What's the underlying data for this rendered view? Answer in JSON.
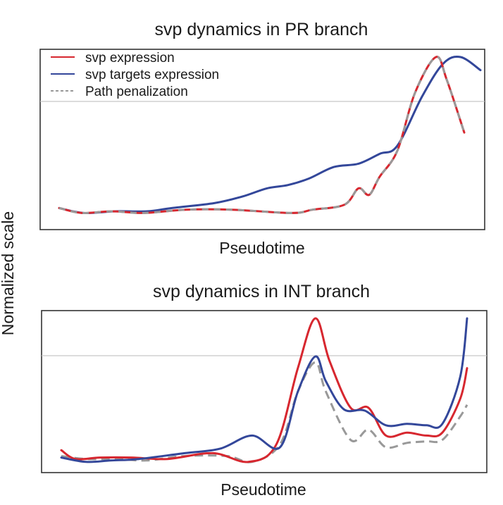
{
  "colors": {
    "svp_expression": "#d7272f",
    "svp_targets_expression": "#33479a",
    "path_penalization": "#999999",
    "frame": "#333333",
    "gridline": "#c8c8c8"
  },
  "shared": {
    "ylabel": "Normalized scale"
  },
  "chart_data": [
    {
      "type": "line",
      "title": "svp dynamics in PR branch",
      "xlabel": "Pseudotime",
      "ylabel": "Normalized scale",
      "xlim": [
        0,
        1
      ],
      "ylim": [
        0,
        1
      ],
      "grid": "single horizontal reference line",
      "legend": {
        "placement": "top-left",
        "entries": [
          "svp expression",
          "svp targets expression",
          "Path penalization"
        ]
      },
      "series": [
        {
          "name": "svp expression",
          "style": "solid",
          "x": [
            0.0,
            0.056,
            0.13,
            0.209,
            0.313,
            0.426,
            0.574,
            0.626,
            0.704,
            0.739,
            0.765,
            0.791,
            0.835,
            0.878,
            0.93,
            0.957,
            1.0
          ],
          "y": [
            0.08,
            0.05,
            0.06,
            0.05,
            0.07,
            0.07,
            0.05,
            0.07,
            0.1,
            0.2,
            0.16,
            0.27,
            0.43,
            0.78,
            1.0,
            0.86,
            0.54
          ]
        },
        {
          "name": "svp targets expression",
          "style": "solid",
          "x": [
            0.0,
            0.061,
            0.139,
            0.217,
            0.278,
            0.383,
            0.452,
            0.513,
            0.565,
            0.617,
            0.678,
            0.739,
            0.791,
            0.835,
            0.896,
            0.948,
            0.991,
            1.04
          ],
          "y": [
            0.08,
            0.05,
            0.06,
            0.06,
            0.08,
            0.11,
            0.15,
            0.2,
            0.22,
            0.26,
            0.33,
            0.35,
            0.41,
            0.46,
            0.76,
            0.96,
            1.0,
            0.92
          ]
        },
        {
          "name": "Path penalization",
          "style": "dashed",
          "x": [
            0.0,
            0.056,
            0.13,
            0.209,
            0.313,
            0.426,
            0.574,
            0.626,
            0.704,
            0.739,
            0.765,
            0.791,
            0.835,
            0.878,
            0.93,
            0.957,
            1.0
          ],
          "y": [
            0.08,
            0.05,
            0.06,
            0.05,
            0.07,
            0.07,
            0.05,
            0.07,
            0.1,
            0.2,
            0.16,
            0.27,
            0.43,
            0.78,
            1.0,
            0.86,
            0.54
          ]
        }
      ]
    },
    {
      "type": "line",
      "title": "svp dynamics in INT branch",
      "xlabel": "Pseudotime",
      "ylabel": "Normalized scale",
      "xlim": [
        0,
        1
      ],
      "ylim": [
        0,
        1
      ],
      "grid": "single horizontal reference line",
      "series": [
        {
          "name": "svp expression",
          "style": "solid",
          "x": [
            0.0,
            0.035,
            0.096,
            0.174,
            0.261,
            0.374,
            0.461,
            0.53,
            0.583,
            0.626,
            0.661,
            0.713,
            0.757,
            0.8,
            0.852,
            0.9,
            0.939,
            0.983,
            1.0
          ],
          "y": [
            0.1,
            0.04,
            0.05,
            0.05,
            0.04,
            0.08,
            0.02,
            0.14,
            0.66,
            1.0,
            0.71,
            0.39,
            0.39,
            0.2,
            0.22,
            0.2,
            0.22,
            0.45,
            0.66
          ]
        },
        {
          "name": "svp targets expression",
          "style": "solid",
          "x": [
            0.0,
            0.061,
            0.122,
            0.191,
            0.304,
            0.391,
            0.47,
            0.539,
            0.583,
            0.626,
            0.652,
            0.696,
            0.748,
            0.8,
            0.852,
            0.9,
            0.939,
            0.983,
            1.0
          ],
          "y": [
            0.05,
            0.02,
            0.03,
            0.04,
            0.08,
            0.11,
            0.2,
            0.12,
            0.5,
            0.74,
            0.57,
            0.38,
            0.37,
            0.27,
            0.28,
            0.27,
            0.28,
            0.6,
            1.0
          ]
        },
        {
          "name": "Path penalization",
          "style": "dashed",
          "x": [
            0.0,
            0.061,
            0.139,
            0.209,
            0.304,
            0.409,
            0.47,
            0.539,
            0.583,
            0.626,
            0.652,
            0.713,
            0.757,
            0.8,
            0.852,
            0.9,
            0.939,
            0.983,
            1.0
          ],
          "y": [
            0.06,
            0.04,
            0.04,
            0.03,
            0.06,
            0.06,
            0.02,
            0.14,
            0.5,
            0.7,
            0.5,
            0.17,
            0.24,
            0.12,
            0.15,
            0.16,
            0.17,
            0.33,
            0.41
          ]
        }
      ]
    }
  ]
}
